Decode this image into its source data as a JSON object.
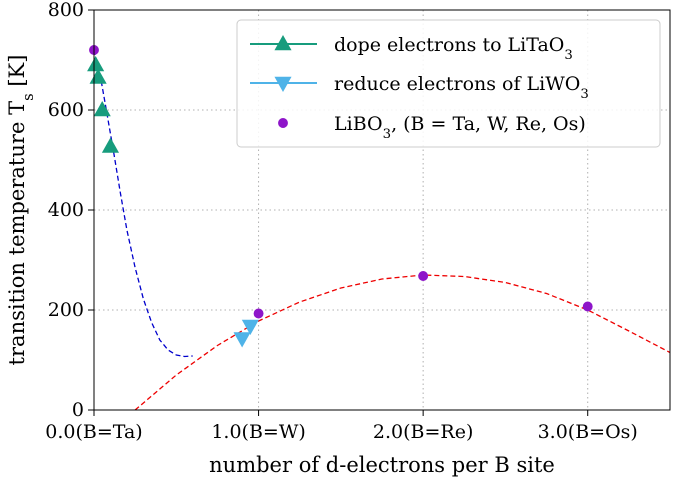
{
  "chart_data": {
    "type": "scatter",
    "xlabel": "number of d-electrons per B site",
    "ylabel": "transition temperature T_s [K]",
    "xlim": [
      0,
      3.5
    ],
    "ylim": [
      0,
      800
    ],
    "grid": true,
    "legend_position": "top-right",
    "x_ticks": [
      {
        "value": 0,
        "label": "0.0(B=Ta)"
      },
      {
        "value": 1,
        "label": "1.0(B=W)"
      },
      {
        "value": 2,
        "label": "2.0(B=Re)"
      },
      {
        "value": 3,
        "label": "3.0(B=Os)"
      }
    ],
    "y_ticks": [
      {
        "value": 0,
        "label": "0"
      },
      {
        "value": 200,
        "label": "200"
      },
      {
        "value": 400,
        "label": "400"
      },
      {
        "value": 600,
        "label": "600"
      },
      {
        "value": 800,
        "label": "800"
      }
    ],
    "series": [
      {
        "name": "dope electrons to LiTaO3",
        "marker": "triangle-up",
        "color": "#179c7d",
        "points": [
          {
            "x": 0.01,
            "y": 690
          },
          {
            "x": 0.025,
            "y": 665
          },
          {
            "x": 0.05,
            "y": 600
          },
          {
            "x": 0.1,
            "y": 527
          }
        ]
      },
      {
        "name": "reduce electrons of LiWO3",
        "marker": "triangle-down",
        "color": "#4fb3e8",
        "points": [
          {
            "x": 0.9,
            "y": 143
          },
          {
            "x": 0.95,
            "y": 168
          }
        ]
      },
      {
        "name": "LiBO3, (B = Ta, W, Re, Os)",
        "marker": "circle",
        "color": "#8e15c9",
        "points": [
          {
            "x": 0,
            "y": 720
          },
          {
            "x": 1,
            "y": 193
          },
          {
            "x": 2,
            "y": 268
          },
          {
            "x": 3,
            "y": 207
          }
        ]
      }
    ],
    "fit_lines": [
      {
        "color": "#0000cc",
        "style": "dashed",
        "points": [
          {
            "x": 0.0,
            "y": 720
          },
          {
            "x": 0.04,
            "y": 665
          },
          {
            "x": 0.08,
            "y": 590
          },
          {
            "x": 0.12,
            "y": 515
          },
          {
            "x": 0.16,
            "y": 435
          },
          {
            "x": 0.2,
            "y": 360
          },
          {
            "x": 0.25,
            "y": 285
          },
          {
            "x": 0.3,
            "y": 222
          },
          {
            "x": 0.35,
            "y": 175
          },
          {
            "x": 0.4,
            "y": 140
          },
          {
            "x": 0.45,
            "y": 120
          },
          {
            "x": 0.5,
            "y": 110
          },
          {
            "x": 0.55,
            "y": 107
          },
          {
            "x": 0.6,
            "y": 108
          }
        ]
      },
      {
        "color": "#ee0000",
        "style": "dashed",
        "points": [
          {
            "x": 0.25,
            "y": 0
          },
          {
            "x": 0.5,
            "y": 70
          },
          {
            "x": 0.75,
            "y": 129
          },
          {
            "x": 1.0,
            "y": 178
          },
          {
            "x": 1.25,
            "y": 216
          },
          {
            "x": 1.5,
            "y": 244
          },
          {
            "x": 1.75,
            "y": 262
          },
          {
            "x": 2.0,
            "y": 270
          },
          {
            "x": 2.25,
            "y": 267
          },
          {
            "x": 2.5,
            "y": 255
          },
          {
            "x": 2.75,
            "y": 233
          },
          {
            "x": 3.0,
            "y": 200
          },
          {
            "x": 3.25,
            "y": 158
          },
          {
            "x": 3.5,
            "y": 115
          }
        ]
      }
    ]
  }
}
